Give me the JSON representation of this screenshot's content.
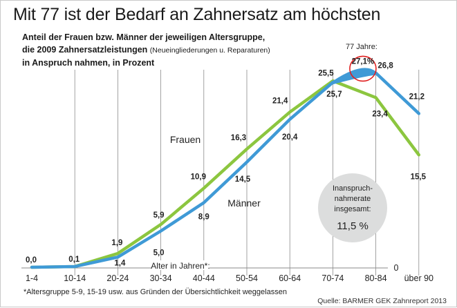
{
  "title": "Mit 77 ist der Bedarf an Zahnersatz am höchsten",
  "subtitle": {
    "line1": "Anteil der Frauen bzw. Männer der jeweiligen Altersgruppe,",
    "line2": "die 2009 Zahnersatzleistungen",
    "line2_small": "(Neueingliederungen u. Reparaturen)",
    "line3": "in Anspruch nahmen, in Prozent"
  },
  "footnote": "*Altersgruppe 5-9, 15-19 usw. aus Gründen der Übersichtlichkeit weggelassen",
  "source": "Quelle: BARMER GEK Zahnreport 2013",
  "chart_data": {
    "type": "line",
    "xlabel": "Alter in Jahren*:",
    "categories": [
      "1-4",
      "10-14",
      "20-24",
      "30-34",
      "40-44",
      "50-54",
      "60-64",
      "70-74",
      "80-84",
      "über 90"
    ],
    "ylim": [
      0,
      30
    ],
    "zero_label": "0",
    "series": [
      {
        "name": "Frauen",
        "color": "#8cc63f",
        "values": [
          0.0,
          0.1,
          1.9,
          5.9,
          10.9,
          16.3,
          21.4,
          25.7,
          23.4,
          15.5
        ]
      },
      {
        "name": "Männer",
        "color": "#3f9ad6",
        "values": [
          0.0,
          0.1,
          1.4,
          5.0,
          8.9,
          14.5,
          20.4,
          25.5,
          26.8,
          21.2
        ]
      }
    ],
    "value_labels": {
      "Frauen": [
        "",
        "",
        "1,9",
        "5,9",
        "10,9",
        "16,3",
        "21,4",
        "25,7",
        "23,4",
        "15,5"
      ],
      "Männer": [
        "0,0",
        "0,1",
        "1,4",
        "5,0",
        "8,9",
        "14,5",
        "20,4",
        "25,5",
        "26,8",
        "21,2"
      ]
    },
    "peak": {
      "x": "77",
      "label": "77 Jahre:",
      "value": 27.1,
      "value_label": "27,1%"
    },
    "badge": {
      "lines": [
        "Inanspruch-",
        "nahmerate",
        "insgesamt:"
      ],
      "value": "11,5 %",
      "color": "#dcdddd"
    }
  }
}
